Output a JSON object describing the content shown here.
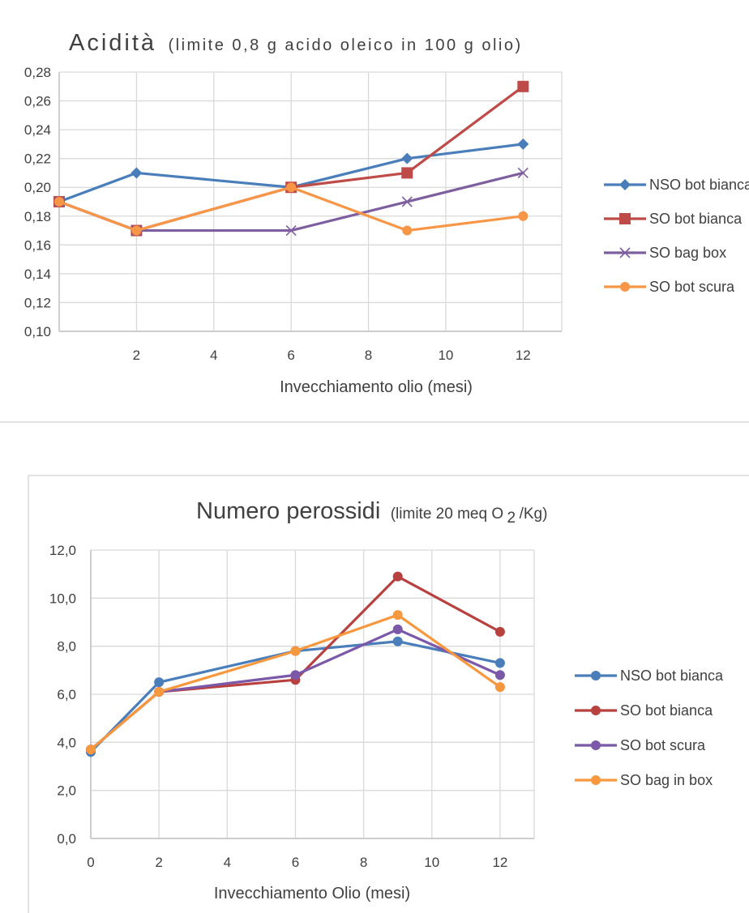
{
  "chart_data": [
    {
      "type": "line",
      "title": "Acidità",
      "subtitle": "(limite 0,8 g acido oleico in 100 g olio)",
      "xlabel": "Invecchiamento olio (mesi)",
      "ylabel": "",
      "x_ticks": [
        "2",
        "4",
        "6",
        "8",
        "10",
        "12"
      ],
      "y_ticks": [
        "0,10",
        "0,12",
        "0,14",
        "0,16",
        "0,18",
        "0,20",
        "0,22",
        "0,24",
        "0,26",
        "0,28"
      ],
      "xlim": [
        0,
        13
      ],
      "ylim": [
        0.1,
        0.28
      ],
      "grid": true,
      "legend_position": "right",
      "series": [
        {
          "name": "NSO bot bianca",
          "color": "#4a7ebb",
          "marker": "diamond",
          "x": [
            0,
            2,
            6,
            9,
            12
          ],
          "values": [
            0.19,
            0.21,
            0.2,
            0.22,
            0.23
          ]
        },
        {
          "name": "SO bot bianca",
          "color": "#be4b48",
          "marker": "square",
          "x": [
            0,
            2,
            6,
            9,
            12
          ],
          "values": [
            0.19,
            0.17,
            0.2,
            0.21,
            0.27
          ]
        },
        {
          "name": "SO bag box",
          "color": "#7d5fa0",
          "marker": "x",
          "x": [
            0,
            2,
            6,
            9,
            12
          ],
          "values": [
            0.19,
            0.17,
            0.17,
            0.19,
            0.21
          ]
        },
        {
          "name": "SO bot scura",
          "color": "#f79646",
          "marker": "circle",
          "x": [
            0,
            2,
            6,
            9,
            12
          ],
          "values": [
            0.19,
            0.17,
            0.2,
            0.17,
            0.18
          ]
        }
      ]
    },
    {
      "type": "line",
      "title": "Numero perossidi",
      "subtitle_pre": "(limite 20 meq O",
      "subtitle_sub": "2",
      "subtitle_post": "/Kg)",
      "xlabel": "Invecchiamento Olio (mesi)",
      "ylabel": "",
      "x_ticks": [
        "0",
        "2",
        "4",
        "6",
        "8",
        "10",
        "12"
      ],
      "y_ticks": [
        "0,0",
        "2,0",
        "4,0",
        "6,0",
        "8,0",
        "10,0",
        "12,0"
      ],
      "xlim": [
        0,
        13
      ],
      "ylim": [
        0,
        12
      ],
      "grid": true,
      "legend_position": "right",
      "series": [
        {
          "name": "NSO bot bianca",
          "color": "#4a7ebb",
          "marker": "circle",
          "x": [
            0,
            2,
            6,
            9,
            12
          ],
          "values": [
            3.6,
            6.5,
            7.8,
            8.2,
            7.3
          ]
        },
        {
          "name": "SO bot bianca",
          "color": "#b8413f",
          "marker": "circle",
          "x": [
            0,
            2,
            6,
            9,
            12
          ],
          "values": [
            3.7,
            6.1,
            6.6,
            10.9,
            8.6
          ]
        },
        {
          "name": "SO bot scura",
          "color": "#7b58a8",
          "marker": "circle",
          "x": [
            0,
            2,
            6,
            9,
            12
          ],
          "values": [
            3.7,
            6.1,
            6.8,
            8.7,
            6.8
          ]
        },
        {
          "name": "SO bag in box",
          "color": "#f7983f",
          "marker": "circle",
          "x": [
            0,
            2,
            6,
            9,
            12
          ],
          "values": [
            3.7,
            6.1,
            7.8,
            9.3,
            6.3
          ]
        }
      ]
    }
  ]
}
